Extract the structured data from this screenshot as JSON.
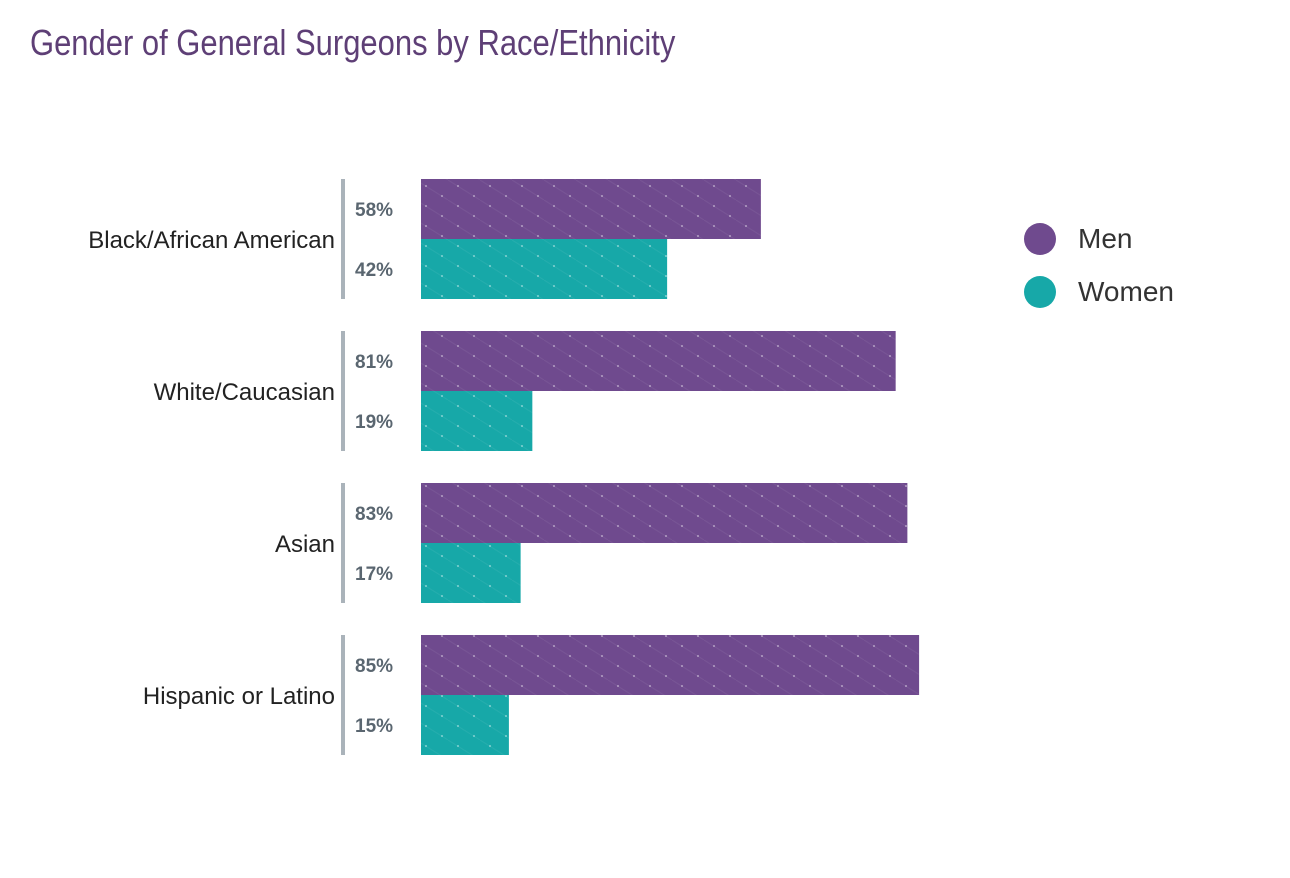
{
  "chart_data": {
    "type": "bar",
    "orientation": "horizontal",
    "title": "Gender of General Surgeons by Race/Ethnicity",
    "categories": [
      "Black/African American",
      "White/Caucasian",
      "Asian",
      "Hispanic or Latino"
    ],
    "series": [
      {
        "name": "Men",
        "values": [
          58,
          81,
          83,
          85
        ],
        "color": "#6f4a8e"
      },
      {
        "name": "Women",
        "values": [
          42,
          19,
          17,
          15
        ],
        "color": "#17a8a8"
      }
    ],
    "value_suffix": "%",
    "xlim": [
      0,
      100
    ],
    "grid": false,
    "legend_position": "right"
  }
}
